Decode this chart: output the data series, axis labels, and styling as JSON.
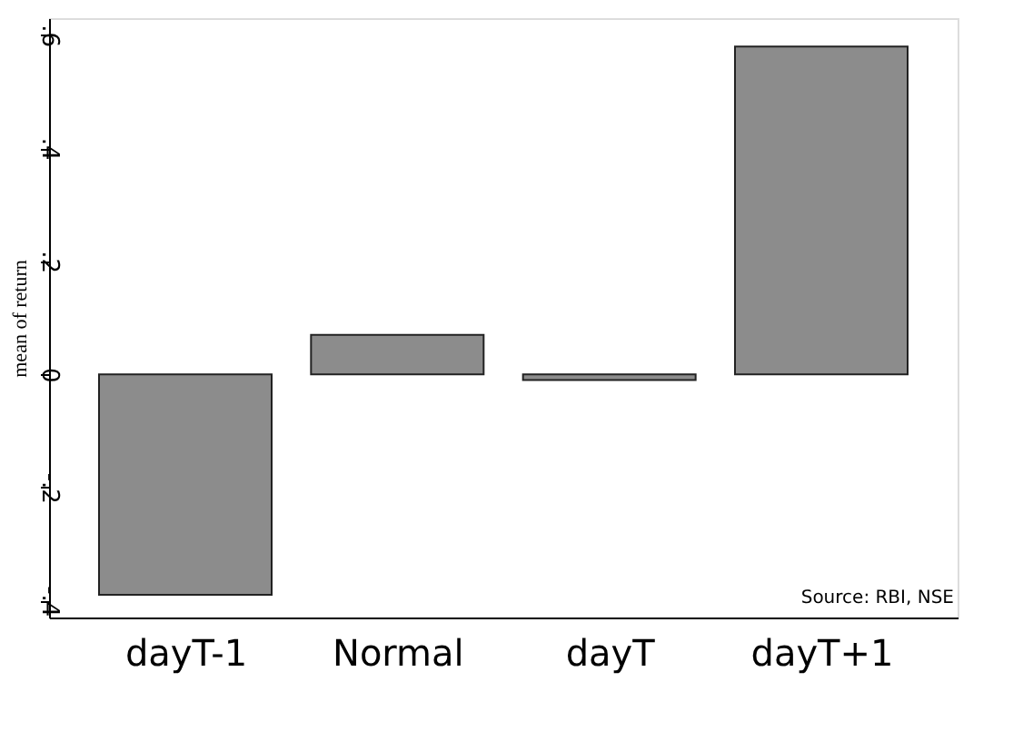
{
  "chart_data": {
    "type": "bar",
    "ylabel": "mean of return",
    "categories": [
      "dayT-1",
      "Normal",
      "dayT",
      "dayT+1"
    ],
    "values": [
      -0.39,
      0.07,
      -0.01,
      0.58
    ],
    "color": "#8c8c8c",
    "ylim": [
      -0.43,
      0.63
    ],
    "yticks": [
      {
        "value": -0.4,
        "label": "-.4"
      },
      {
        "value": -0.2,
        "label": "-.2"
      },
      0,
      {
        "value": 0.2,
        "label": ".2"
      },
      {
        "value": 0.4,
        "label": ".4"
      },
      {
        "value": 0.6,
        "label": ".6"
      }
    ],
    "grid": false,
    "annotations": [
      "Source: RBI, NSE"
    ]
  }
}
